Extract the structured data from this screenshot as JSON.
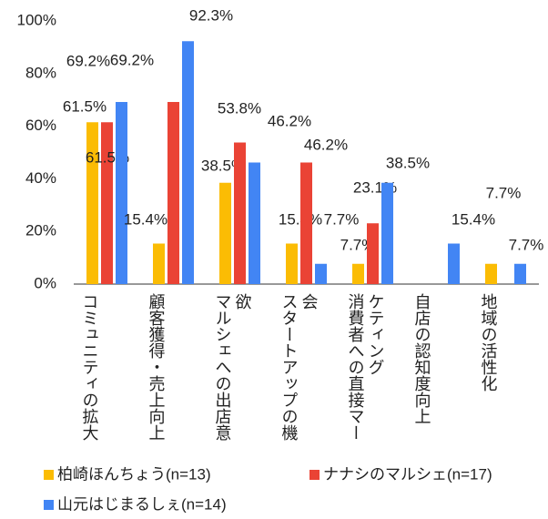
{
  "chart_data": {
    "type": "bar",
    "categories": [
      "コミュニティの拡大",
      "顧客獲得・売上向上",
      "マルシェへの出店意欲",
      "スタートアップの機会",
      "消費者への直接マーケティング",
      "自店の認知度向上",
      "地域の活性化"
    ],
    "series": [
      {
        "name": "柏崎ほんちょう(n=13)",
        "color": "#fbbc04",
        "values": [
          61.5,
          15.4,
          38.5,
          15.4,
          7.7,
          null,
          7.7
        ],
        "value_labels": [
          "61.5%",
          "15.4%",
          "38.5%",
          "15.4%",
          "7.7%",
          null,
          "7.7%"
        ]
      },
      {
        "name": "ナナシのマルシェ(n=17)",
        "color": "#ea4335",
        "values": [
          61.5,
          69.2,
          53.8,
          46.2,
          23.1,
          null,
          null
        ],
        "value_labels": [
          "61.5%",
          "69.2%",
          "53.8%",
          "46.2%",
          "23.1%",
          null,
          null
        ]
      },
      {
        "name": "山元はじまるしぇ(n=14)",
        "color": "#4285f4",
        "values": [
          69.2,
          92.3,
          46.2,
          7.7,
          38.5,
          15.4,
          7.7
        ],
        "value_labels": [
          "69.2%",
          "92.3%",
          "46.2%",
          "7.7%",
          "38.5%",
          "15.4%",
          "7.7%"
        ]
      }
    ],
    "ylim": [
      0,
      100
    ],
    "yticks": [
      {
        "value": 0,
        "label": "0%"
      },
      {
        "value": 20,
        "label": "20%"
      },
      {
        "value": 40,
        "label": "40%"
      },
      {
        "value": 60,
        "label": "60%"
      },
      {
        "value": 80,
        "label": "80%"
      },
      {
        "value": 100,
        "label": "100%"
      }
    ],
    "grid": false
  }
}
